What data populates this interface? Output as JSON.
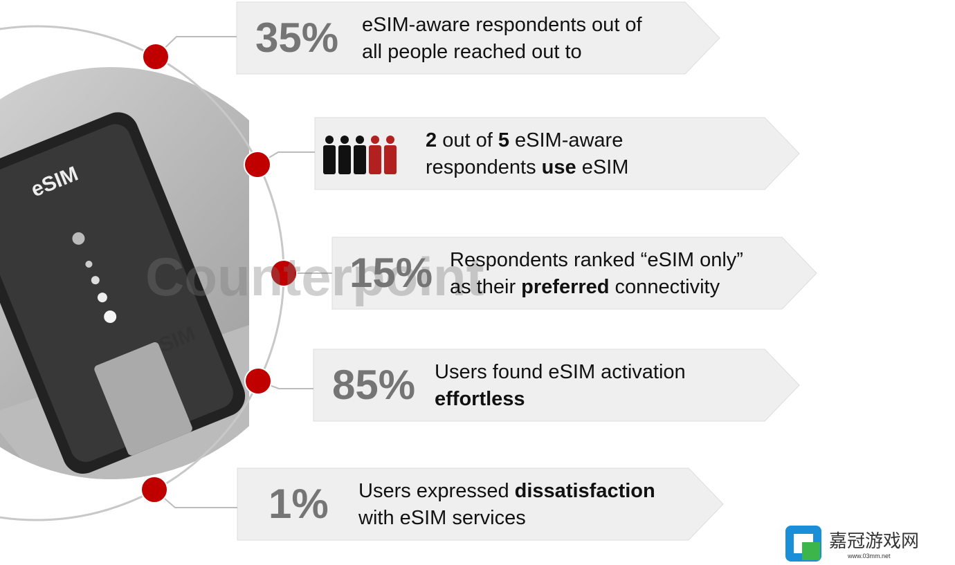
{
  "items": [
    {
      "stat": "35%",
      "text": [
        {
          "text": "eSIM-aware respondents out of"
        },
        {
          "text": "all people reached out to",
          "newline": true
        }
      ]
    },
    {
      "text": [
        {
          "text": "2",
          "bold": true
        },
        {
          "text": " out of "
        },
        {
          "text": "5",
          "bold": true
        },
        {
          "text": " eSIM-aware"
        },
        {
          "text": "respondents ",
          "newline": true
        },
        {
          "text": "use",
          "bold": true
        },
        {
          "text": " eSIM"
        }
      ]
    },
    {
      "stat": "15%",
      "text": [
        {
          "text": "Respondents ranked “eSIM only”"
        },
        {
          "text": "as their ",
          "newline": true
        },
        {
          "text": "preferred",
          "bold": true
        },
        {
          "text": " connectivity"
        }
      ]
    },
    {
      "stat": "85%",
      "text": [
        {
          "text": "Users found eSIM activation"
        },
        {
          "text": "effortless",
          "bold": true,
          "newline": true
        }
      ]
    },
    {
      "stat": "1%",
      "text": [
        {
          "text": "Users expressed "
        },
        {
          "text": "dissatisfaction",
          "bold": true
        },
        {
          "text": "with eSIM services",
          "newline": true
        }
      ]
    }
  ],
  "photo": {
    "label_esim": "eSIM",
    "label_sim": "SIM"
  },
  "watermark": "Counterpoint",
  "logo": {
    "name": "嘉冠游戏网",
    "url": "www.03mm.net"
  }
}
